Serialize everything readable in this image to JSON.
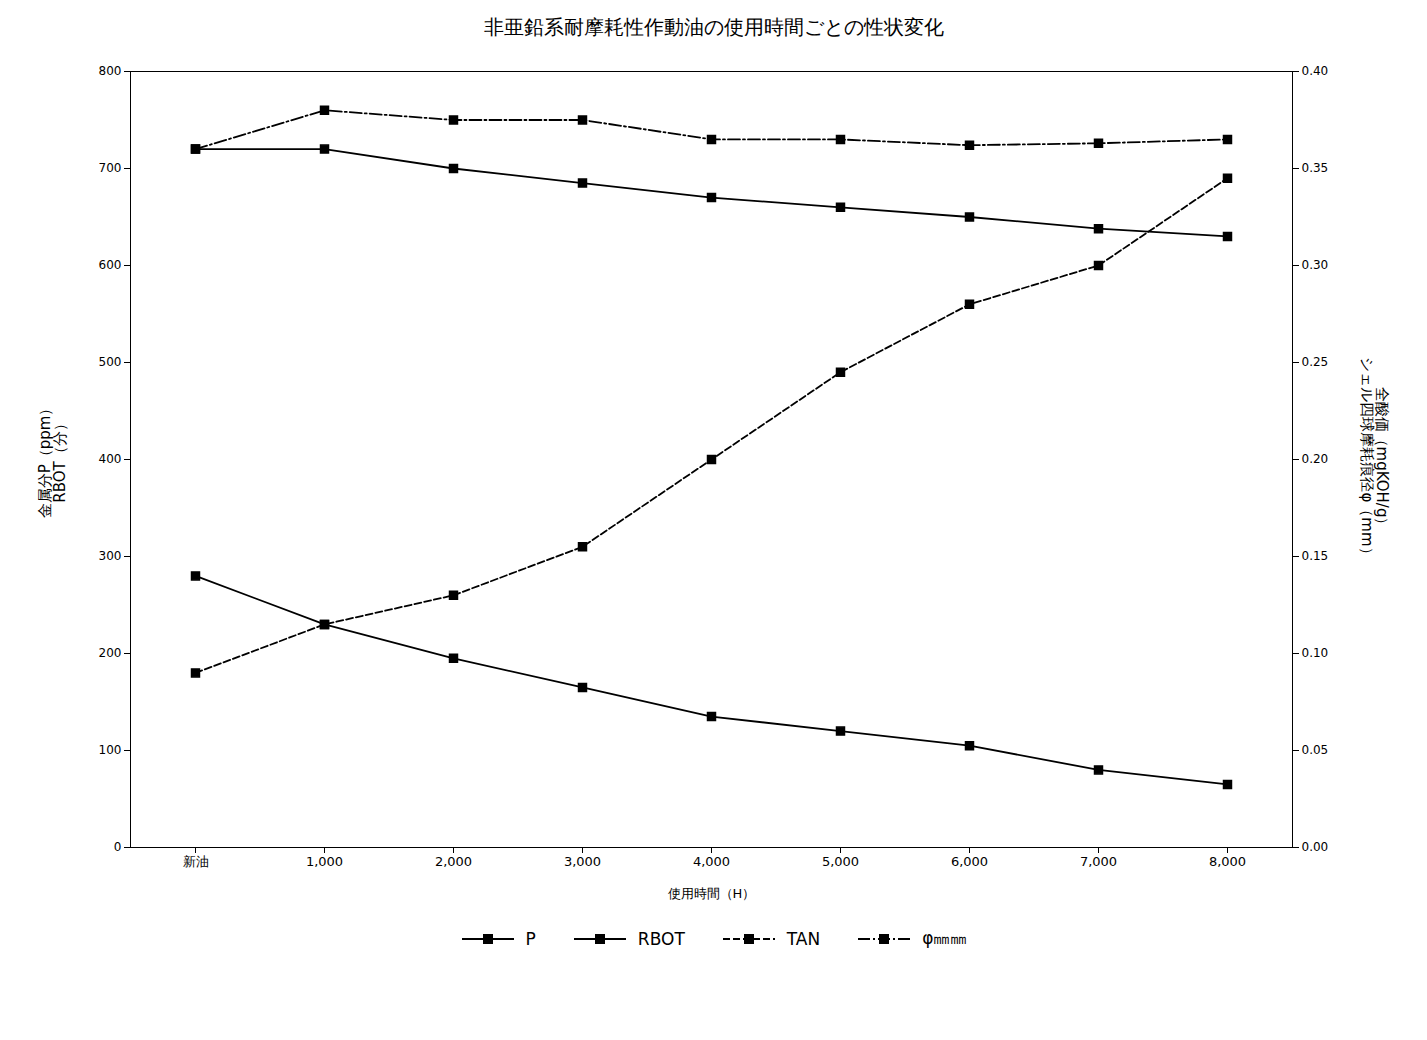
{
  "chart_data": {
    "type": "line",
    "title": "非亜鉛系耐摩耗性作動油の使用時間ごとの性状変化",
    "xlabel": "使用時間（H）",
    "ylabel": "金属分P（ppm）\nRBOT（分）",
    "y2label": "全酸価（mgKOH/g）\nシェル四球摩耗痕径φ（mm）",
    "categories": [
      "新油",
      "1,000",
      "2,000",
      "3,000",
      "4,000",
      "5,000",
      "6,000",
      "7,000",
      "8,000"
    ],
    "series": [
      {
        "name": "P",
        "color": "#000000",
        "marker": "square",
        "line_style": "solid",
        "values": [
          280,
          230,
          195,
          165,
          135,
          120,
          105,
          80,
          65
        ]
      },
      {
        "name": "RBOT",
        "color": "#000000",
        "marker": "square",
        "line_style": "solid",
        "values": [
          720,
          720,
          700,
          685,
          670,
          660,
          650,
          638,
          630
        ]
      },
      {
        "name": "TAN",
        "color": "#000000",
        "marker": "square",
        "line_style": "dashed",
        "axis": "y2",
        "values": [
          0.09,
          0.115,
          0.13,
          0.155,
          0.2,
          0.245,
          0.28,
          0.3,
          0.345
        ]
      },
      {
        "name": "φ㎜㎜",
        "color": "#000000",
        "marker": "square",
        "line_style": "dashdot",
        "axis": "y2",
        "values": [
          0.36,
          0.38,
          0.375,
          0.375,
          0.365,
          0.365,
          0.362,
          0.363,
          0.365
        ]
      }
    ],
    "ylim": [
      0,
      800
    ],
    "yticks": [
      0,
      100,
      200,
      300,
      400,
      500,
      600,
      700,
      800
    ],
    "y2lim": [
      0.0,
      0.4
    ],
    "y2ticks": [
      {
        "value": 0.0,
        "label": "0.00"
      },
      {
        "value": 0.05,
        "label": "0.05"
      },
      {
        "value": 0.1,
        "label": "0.10"
      },
      {
        "value": 0.15,
        "label": "0.15"
      },
      {
        "value": 0.2,
        "label": "0.20"
      },
      {
        "value": 0.25,
        "label": "0.25"
      },
      {
        "value": 0.3,
        "label": "0.30"
      },
      {
        "value": 0.35,
        "label": "0.35"
      },
      {
        "value": 0.4,
        "label": "0.40"
      }
    ],
    "grid": false,
    "legend": "bottom"
  }
}
